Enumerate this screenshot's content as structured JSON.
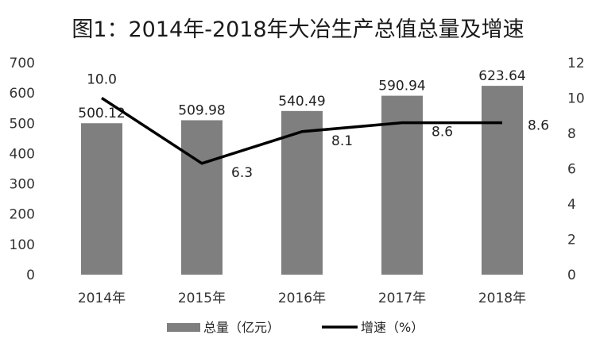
{
  "chart_data": {
    "type": "bar",
    "title": "图1：2014年-2018年大冶生产总值总量及增速",
    "categories": [
      "2014年",
      "2015年",
      "2016年",
      "2017年",
      "2018年"
    ],
    "series": [
      {
        "name": "总量（亿元）",
        "type": "bar",
        "axis": "left",
        "values": [
          500.12,
          509.98,
          540.49,
          590.94,
          623.64
        ],
        "labels": [
          "500.12",
          "509.98",
          "540.49",
          "590.94",
          "623.64"
        ]
      },
      {
        "name": "增速（%）",
        "type": "line",
        "axis": "right",
        "values": [
          10.0,
          6.3,
          8.1,
          8.6,
          8.6
        ],
        "labels": [
          "10.0",
          "6.3",
          "8.1",
          "8.6",
          "8.6"
        ]
      }
    ],
    "y_left": {
      "ylim": [
        0,
        700
      ],
      "ticks": [
        "0",
        "100",
        "200",
        "300",
        "400",
        "500",
        "600",
        "700"
      ]
    },
    "y_right": {
      "ylim": [
        0,
        12
      ],
      "ticks": [
        "0",
        "2",
        "4",
        "6",
        "8",
        "10",
        "12"
      ]
    },
    "grid": false,
    "legend": "bottom",
    "colors": {
      "bar": "#7f7f7f",
      "line": "#000000"
    }
  }
}
